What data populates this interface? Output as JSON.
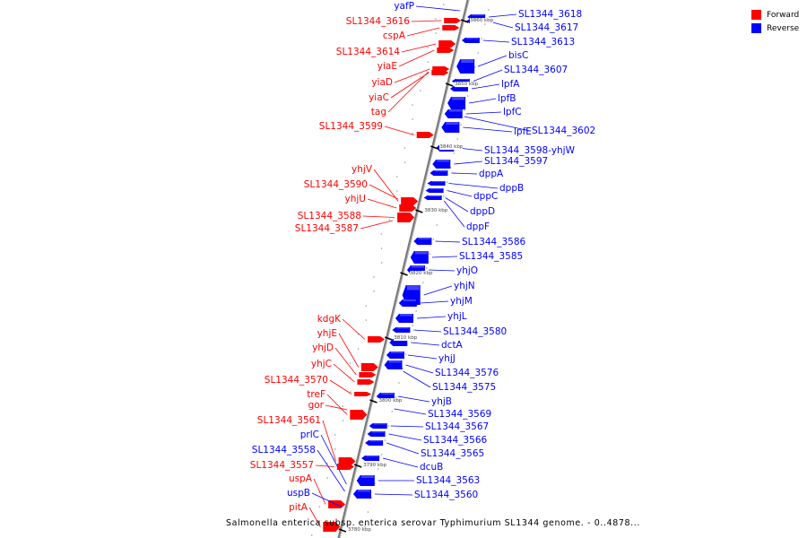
{
  "title": "Salmonella enterica subsp. enterica serovar Typhimurium SL1344 genome. - 0..4878...",
  "legend": [
    {
      "label": "Forward",
      "color": "#ff0000"
    },
    {
      "label": "Reverse",
      "color": "#0000ff"
    }
  ],
  "colors": {
    "forward": "#ff0000",
    "reverse": "#0000ff",
    "axis": "#888888"
  },
  "ticks": [
    "3860 kbp",
    "3850 kbp",
    "3840 kbp",
    "3830 kbp",
    "3820 kbp",
    "3810 kbp",
    "3800 kbp",
    "3790 kbp",
    "3780 kbp"
  ],
  "left_genes": [
    {
      "name": "yafP",
      "strand": "reverse"
    },
    {
      "name": "SL1344_3616",
      "strand": "forward"
    },
    {
      "name": "cspA",
      "strand": "forward"
    },
    {
      "name": "SL1344_3614",
      "strand": "forward"
    },
    {
      "name": "yiaE",
      "strand": "forward"
    },
    {
      "name": "yiaD",
      "strand": "forward"
    },
    {
      "name": "yiaC",
      "strand": "forward"
    },
    {
      "name": "tag",
      "strand": "forward"
    },
    {
      "name": "SL1344_3599",
      "strand": "forward"
    },
    {
      "name": "yhjV",
      "strand": "forward"
    },
    {
      "name": "SL1344_3590",
      "strand": "forward"
    },
    {
      "name": "yhjU",
      "strand": "forward"
    },
    {
      "name": "SL1344_3588",
      "strand": "forward"
    },
    {
      "name": "SL1344_3587",
      "strand": "forward"
    },
    {
      "name": "kdgK",
      "strand": "forward"
    },
    {
      "name": "yhjE",
      "strand": "forward"
    },
    {
      "name": "yhjD",
      "strand": "forward"
    },
    {
      "name": "yhjC",
      "strand": "forward"
    },
    {
      "name": "SL1344_3570",
      "strand": "forward"
    },
    {
      "name": "treF",
      "strand": "forward"
    },
    {
      "name": "gor",
      "strand": "forward"
    },
    {
      "name": "SL1344_3561",
      "strand": "forward"
    },
    {
      "name": "prlC",
      "strand": "reverse"
    },
    {
      "name": "SL1344_3558",
      "strand": "reverse"
    },
    {
      "name": "SL1344_3557",
      "strand": "forward"
    },
    {
      "name": "uspA",
      "strand": "forward"
    },
    {
      "name": "uspB",
      "strand": "reverse"
    },
    {
      "name": "pitA",
      "strand": "forward"
    }
  ],
  "right_genes": [
    {
      "name": "SL1344_3618",
      "strand": "reverse"
    },
    {
      "name": "SL1344_3617",
      "strand": "reverse"
    },
    {
      "name": "SL1344_3613",
      "strand": "reverse"
    },
    {
      "name": "bisC",
      "strand": "reverse"
    },
    {
      "name": "SL1344_3607",
      "strand": "reverse"
    },
    {
      "name": "lpfA",
      "strand": "reverse"
    },
    {
      "name": "lpfB",
      "strand": "reverse"
    },
    {
      "name": "lpfC",
      "strand": "reverse"
    },
    {
      "name": "lpfE",
      "strand": "reverse"
    },
    {
      "name": "SL1344_3602",
      "strand": "reverse"
    },
    {
      "name": "SL1344_3598-yhjW",
      "strand": "reverse"
    },
    {
      "name": "SL1344_3597",
      "strand": "reverse"
    },
    {
      "name": "dppA",
      "strand": "reverse"
    },
    {
      "name": "dppB",
      "strand": "reverse"
    },
    {
      "name": "dppC",
      "strand": "reverse"
    },
    {
      "name": "dppD",
      "strand": "reverse"
    },
    {
      "name": "dppF",
      "strand": "reverse"
    },
    {
      "name": "SL1344_3586",
      "strand": "reverse"
    },
    {
      "name": "SL1344_3585",
      "strand": "reverse"
    },
    {
      "name": "yhjO",
      "strand": "reverse"
    },
    {
      "name": "yhjN",
      "strand": "reverse"
    },
    {
      "name": "yhjM",
      "strand": "reverse"
    },
    {
      "name": "yhjL",
      "strand": "reverse"
    },
    {
      "name": "SL1344_3580",
      "strand": "reverse"
    },
    {
      "name": "dctA",
      "strand": "reverse"
    },
    {
      "name": "yhjJ",
      "strand": "reverse"
    },
    {
      "name": "SL1344_3576",
      "strand": "reverse"
    },
    {
      "name": "SL1344_3575",
      "strand": "reverse"
    },
    {
      "name": "yhjB",
      "strand": "reverse"
    },
    {
      "name": "SL1344_3569",
      "strand": "reverse"
    },
    {
      "name": "SL1344_3567",
      "strand": "reverse"
    },
    {
      "name": "SL1344_3566",
      "strand": "reverse"
    },
    {
      "name": "SL1344_3565",
      "strand": "reverse"
    },
    {
      "name": "dcuB",
      "strand": "reverse"
    },
    {
      "name": "SL1344_3563",
      "strand": "reverse"
    },
    {
      "name": "SL1344_3560",
      "strand": "reverse"
    }
  ]
}
